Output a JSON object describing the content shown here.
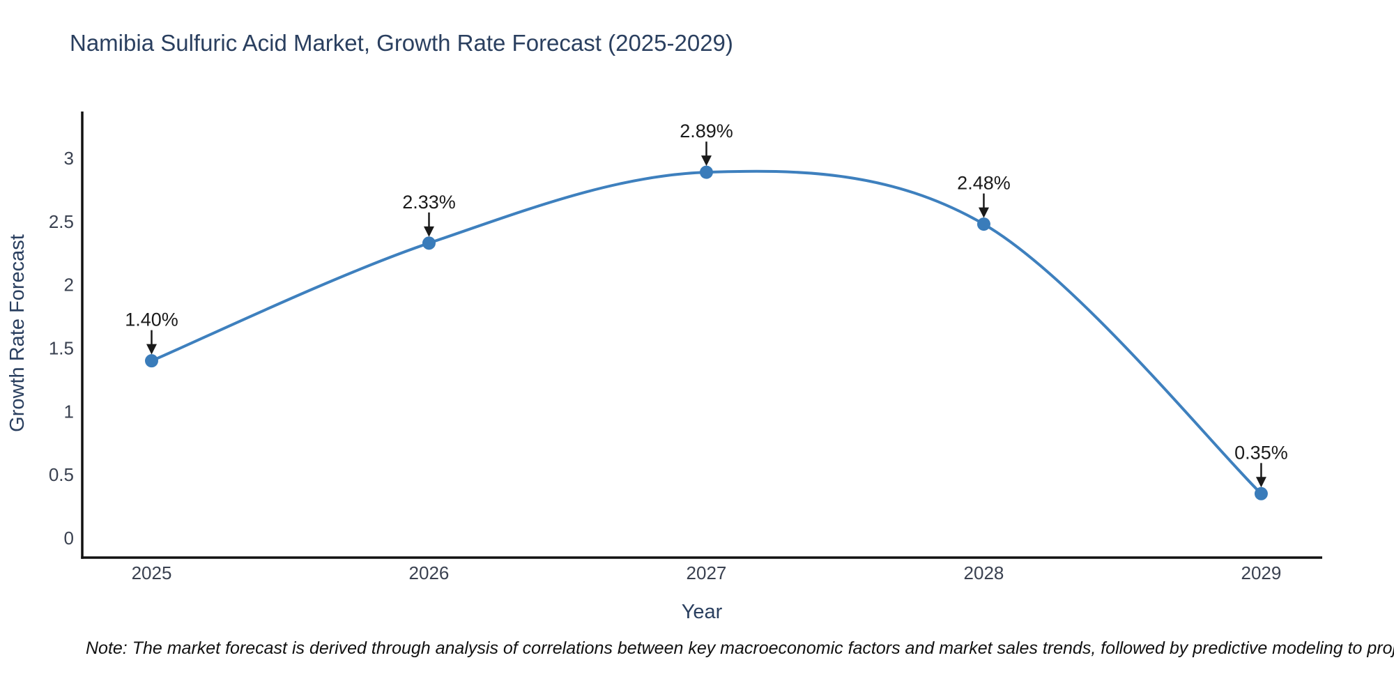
{
  "title": {
    "text": "Namibia Sulfuric Acid Market, Growth Rate Forecast (2025-2029)"
  },
  "note": {
    "text": "Note: The market forecast is derived through analysis of correlations between key macroeconomic factors and market sales trends, followed by predictive modeling to project future sales"
  },
  "chart_data": {
    "type": "line",
    "title": "Namibia Sulfuric Acid Market, Growth Rate Forecast (2025-2029)",
    "categories": [
      "2025",
      "2026",
      "2027",
      "2028",
      "2029"
    ],
    "x": [
      2025,
      2026,
      2027,
      2028,
      2029
    ],
    "values": [
      1.4,
      2.33,
      2.89,
      2.48,
      0.35
    ],
    "point_labels": [
      "1.40%",
      "2.33%",
      "2.89%",
      "2.48%",
      "0.35%"
    ],
    "xlabel": "Year",
    "ylabel": "Growth Rate Forecast",
    "yticks": [
      0,
      0.5,
      1,
      1.5,
      2,
      2.5,
      3
    ],
    "ytick_labels": [
      "0",
      "0.5",
      "1",
      "1.5",
      "2",
      "2.5",
      "3"
    ],
    "xlim": [
      2024.75,
      2029.22
    ],
    "ylim": [
      -0.155,
      3.37
    ],
    "line_shape": "spline",
    "grid": false,
    "legend": "none",
    "colors": {
      "line": "#3e80be",
      "marker": "#3a7cba",
      "axis": "#111111",
      "annotation": "#1a1a1a",
      "title_text": "#2a3f5f",
      "tick_text": "#3a4150",
      "background": "#ffffff"
    }
  }
}
